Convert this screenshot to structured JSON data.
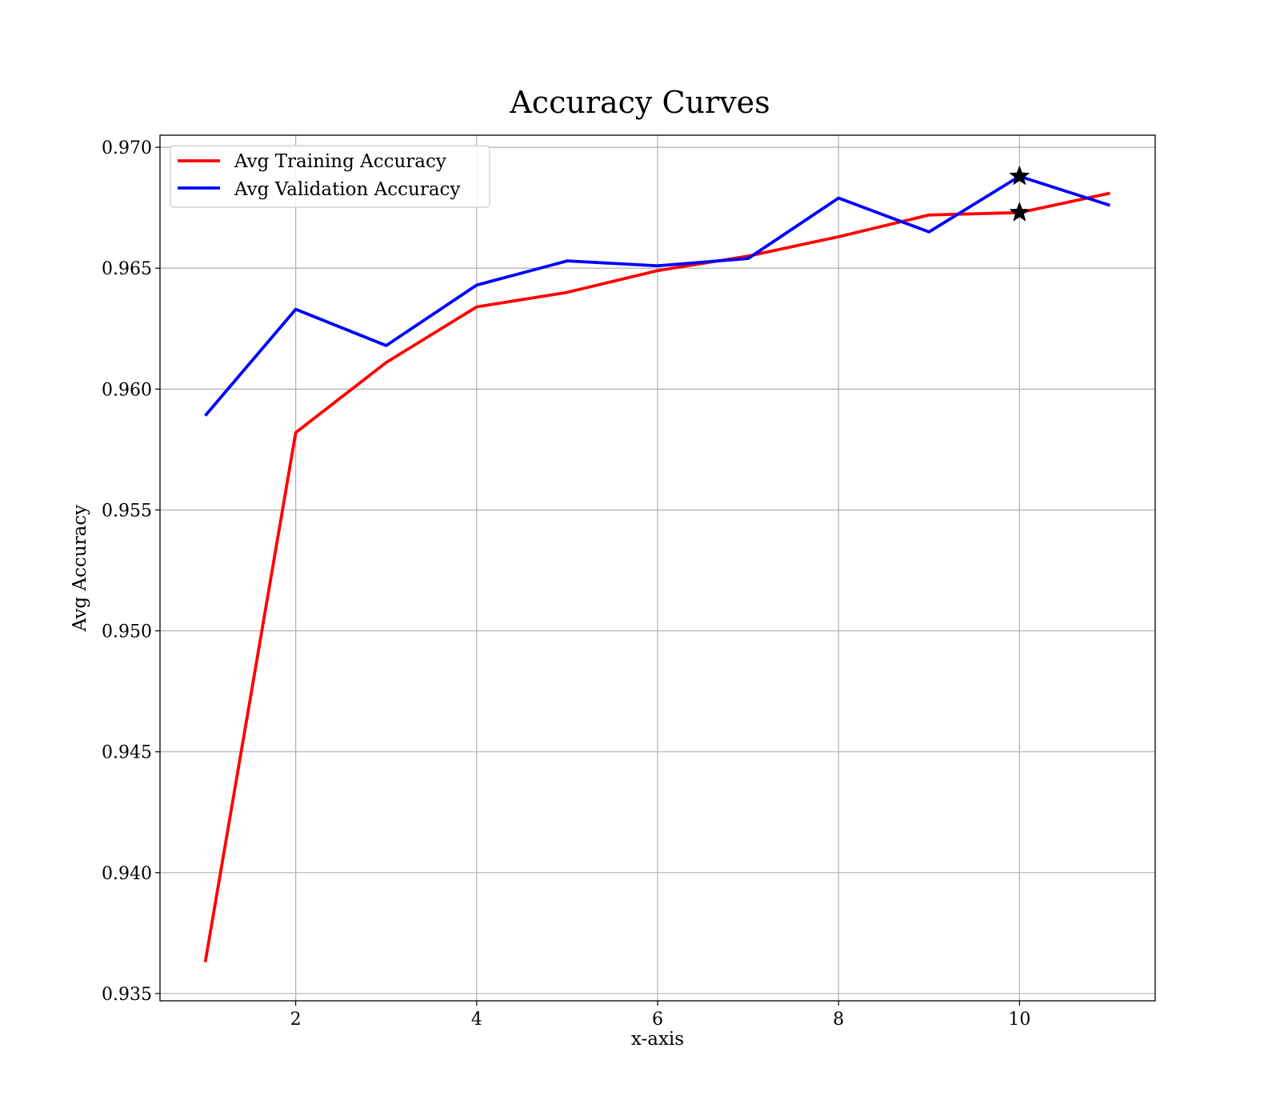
{
  "chart_data": {
    "type": "line",
    "title": "Accuracy Curves",
    "xlabel": "x-axis",
    "ylabel": "Avg Accuracy",
    "xlim": [
      0.5,
      11.5
    ],
    "ylim": [
      0.9347,
      0.9705
    ],
    "xticks": [
      2,
      4,
      6,
      8,
      10
    ],
    "xtick_labels": [
      "2",
      "4",
      "6",
      "8",
      "10"
    ],
    "yticks": [
      0.935,
      0.94,
      0.945,
      0.95,
      0.955,
      0.96,
      0.965,
      0.97
    ],
    "ytick_labels": [
      "0.935",
      "0.940",
      "0.945",
      "0.950",
      "0.955",
      "0.960",
      "0.965",
      "0.970"
    ],
    "grid": true,
    "legend_position": "upper-left",
    "x": [
      1,
      2,
      3,
      4,
      5,
      6,
      7,
      8,
      9,
      10,
      11
    ],
    "series": [
      {
        "name": "Avg Training Accuracy",
        "color": "#ff0000",
        "values": [
          0.9363,
          0.9582,
          0.9611,
          0.9634,
          0.964,
          0.9649,
          0.9655,
          0.9663,
          0.9672,
          0.9673,
          0.9681
        ]
      },
      {
        "name": "Avg Validation Accuracy",
        "color": "#0000ff",
        "values": [
          0.9589,
          0.9633,
          0.9618,
          0.9643,
          0.9653,
          0.9651,
          0.9654,
          0.9679,
          0.9665,
          0.9688,
          0.9676
        ]
      }
    ],
    "markers": [
      {
        "series": "Avg Training Accuracy",
        "x": 10,
        "y": 0.9673,
        "shape": "star-icon",
        "color": "#000000"
      },
      {
        "series": "Avg Validation Accuracy",
        "x": 10,
        "y": 0.9688,
        "shape": "star-icon",
        "color": "#000000"
      }
    ]
  }
}
